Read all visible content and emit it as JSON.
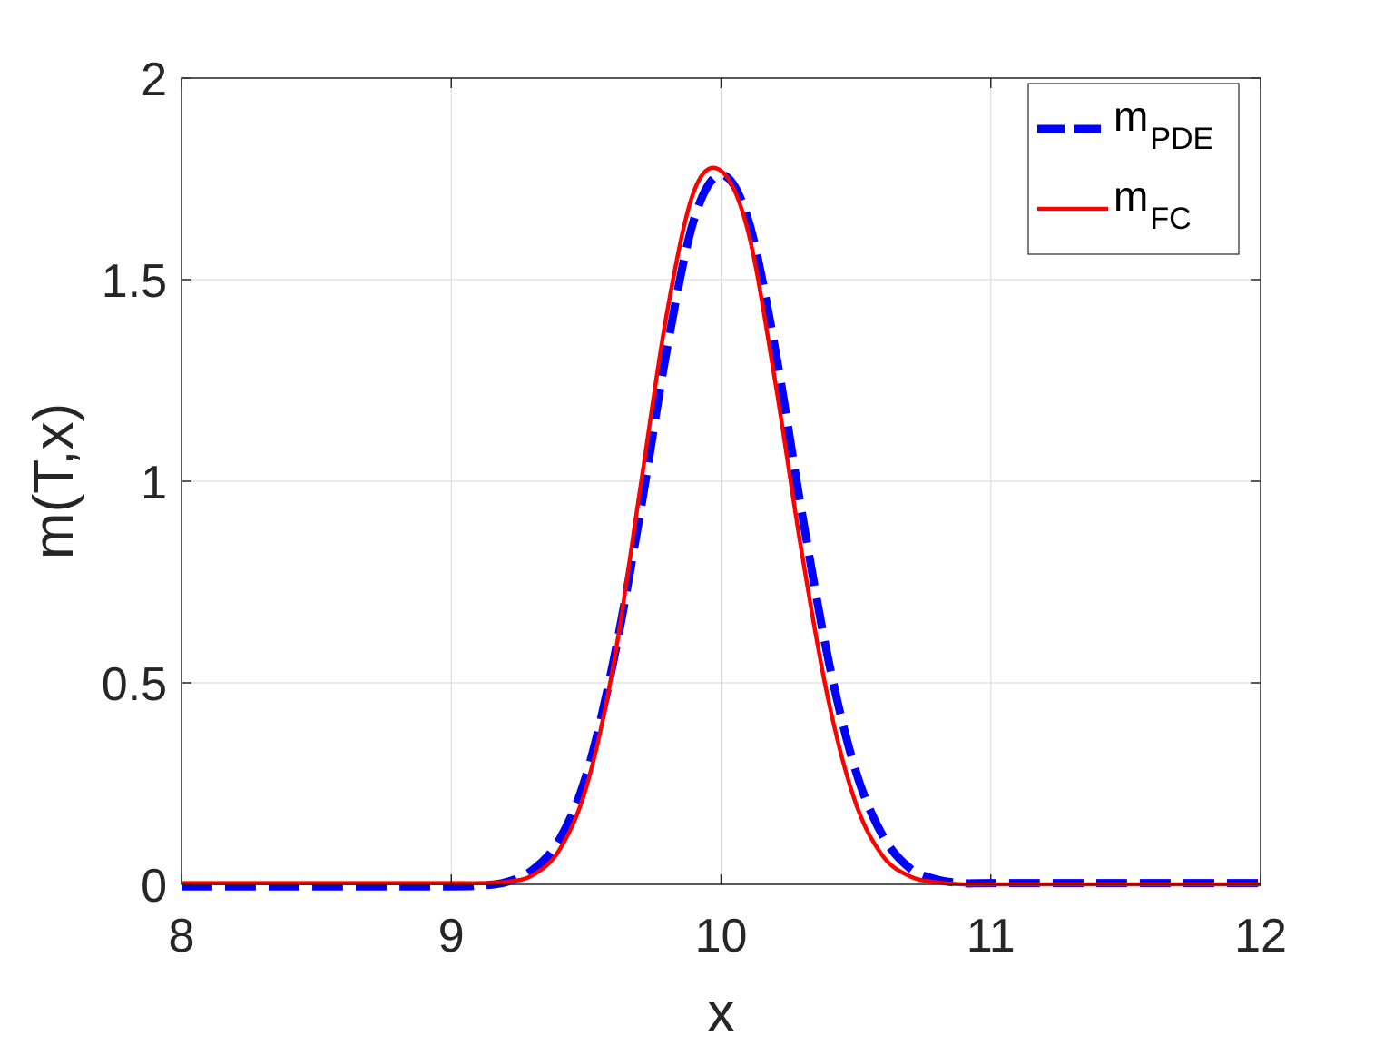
{
  "chart_data": {
    "type": "line",
    "xlabel": "x",
    "ylabel": "m(T,x)",
    "xlim": [
      8,
      12
    ],
    "ylim": [
      0,
      2
    ],
    "xticks": [
      8,
      9,
      10,
      11,
      12
    ],
    "yticks": [
      0,
      0.5,
      1,
      1.5,
      2
    ],
    "xtick_labels": [
      "8",
      "9",
      "10",
      "11",
      "12"
    ],
    "ytick_labels": [
      "0",
      "0.5",
      "1",
      "1.5",
      "2"
    ],
    "grid": true,
    "legend_position": "top-right",
    "series": [
      {
        "name": "m_PDE",
        "legend_base": "m",
        "legend_sub": "PDE",
        "color": "#0000ff",
        "line_style": "dashed",
        "x": [
          8,
          8.5,
          9,
          9.1,
          9.2,
          9.3,
          9.4,
          9.5,
          9.6,
          9.7,
          9.8,
          9.9,
          10,
          10.1,
          10.2,
          10.3,
          10.4,
          10.5,
          10.6,
          10.7,
          10.8,
          10.9,
          11,
          11.5,
          12
        ],
        "y": [
          -0.005,
          -0.005,
          -0.005,
          -0.003,
          0.005,
          0.035,
          0.11,
          0.27,
          0.55,
          0.92,
          1.33,
          1.65,
          1.76,
          1.65,
          1.33,
          0.92,
          0.55,
          0.28,
          0.12,
          0.04,
          0.012,
          0.003,
          0.003,
          0.003,
          0.003
        ]
      },
      {
        "name": "m_FC",
        "legend_base": "m",
        "legend_sub": "FC",
        "color": "#ff0000",
        "line_style": "solid",
        "x": [
          8,
          8.5,
          9,
          9.1,
          9.2,
          9.3,
          9.4,
          9.5,
          9.6,
          9.7,
          9.8,
          9.9,
          10,
          10.1,
          10.2,
          10.3,
          10.4,
          10.5,
          10.6,
          10.7,
          10.8,
          10.9,
          11,
          11.5,
          12
        ],
        "y": [
          0.003,
          0.003,
          0.003,
          0.003,
          0.006,
          0.022,
          0.085,
          0.24,
          0.54,
          0.98,
          1.42,
          1.72,
          1.77,
          1.62,
          1.25,
          0.82,
          0.45,
          0.2,
          0.07,
          0.02,
          0.005,
          0,
          0,
          0,
          0
        ]
      }
    ]
  }
}
